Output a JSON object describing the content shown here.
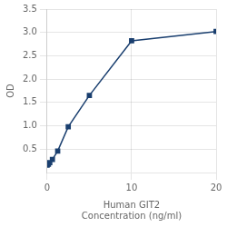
{
  "chart_data": {
    "type": "line",
    "xlabel": "Human GIT2\nConcentration (ng/ml)",
    "ylabel": "OD",
    "x": [
      0.0,
      0.156,
      0.313,
      0.625,
      1.25,
      2.5,
      5.0,
      10.0,
      20.0
    ],
    "values": [
      0.158,
      0.175,
      0.21,
      0.28,
      0.46,
      0.98,
      1.65,
      2.82,
      3.02
    ],
    "color": "#1a3f6f",
    "marker": "square",
    "xlim": [
      0,
      20
    ],
    "xticks": [
      0,
      10,
      20
    ],
    "ylim": [
      0,
      3.5
    ],
    "yticks": [
      0.5,
      {
        "value": 1.0,
        "label": "1.0"
      },
      1.5,
      {
        "value": 2.0,
        "label": "2.0"
      },
      2.5,
      {
        "value": 3.0,
        "label": "3.0"
      },
      3.5
    ],
    "grid": true
  }
}
